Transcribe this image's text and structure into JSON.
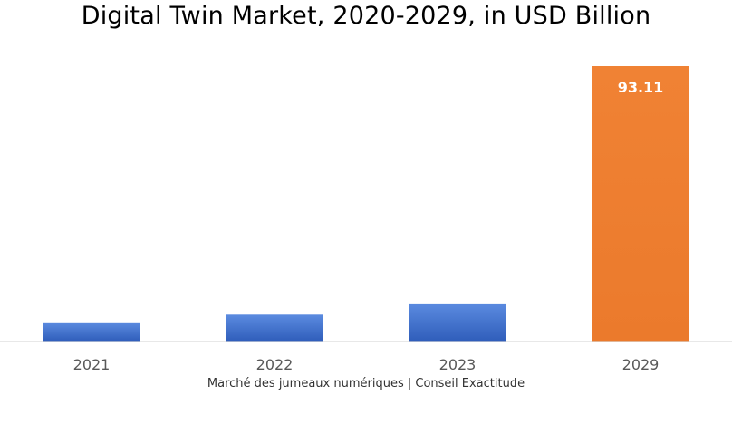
{
  "chart_data": {
    "type": "bar",
    "title": "Digital Twin Market, 2020-2029, in USD Billion",
    "xlabel": "Marché des jumeaux numériques | Conseil Exactitude",
    "ylabel": "",
    "categories": [
      "2021",
      "2022",
      "2023",
      "2029"
    ],
    "values": [
      6.5,
      9.1,
      12.9,
      93.11
    ],
    "data_labels": [
      "",
      "",
      "",
      "93.11"
    ],
    "ylim": [
      0,
      93.11
    ],
    "grid": false,
    "legend": "none",
    "colors": {
      "default_bar": "#4472C4",
      "highlight_bar": "#ED7D31",
      "axis": "#D9D9D9",
      "tick_label": "#595959",
      "data_label": "#ffffff"
    },
    "highlight_index": 3
  }
}
